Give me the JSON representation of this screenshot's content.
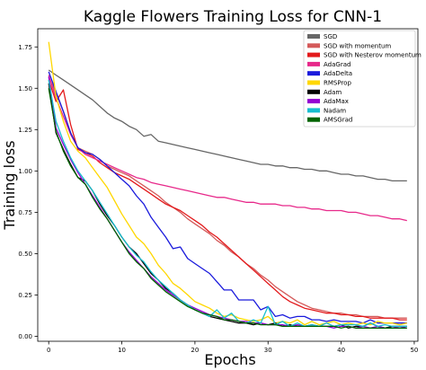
{
  "chart_data": {
    "type": "line",
    "title": "Kaggle Flowers Training Loss for CNN-1",
    "xlabel": "Epochs",
    "ylabel": "Training loss",
    "xlim": [
      -1.5,
      50.5
    ],
    "ylim": [
      -0.03,
      1.86
    ],
    "xticks": [
      0,
      10,
      20,
      30,
      40,
      50
    ],
    "yticks": [
      0.0,
      0.25,
      0.5,
      0.75,
      1.0,
      1.25,
      1.5,
      1.75
    ],
    "xtick_labels": [
      "0",
      "10",
      "20",
      "30",
      "40",
      "50"
    ],
    "ytick_labels": [
      "0.00",
      "0.25",
      "0.50",
      "0.75",
      "1.00",
      "1.25",
      "1.50",
      "1.75"
    ],
    "grid": false,
    "legend_position": "top-right",
    "x": [
      0,
      1,
      2,
      3,
      4,
      5,
      6,
      7,
      8,
      9,
      10,
      11,
      12,
      13,
      14,
      15,
      16,
      17,
      18,
      19,
      20,
      21,
      22,
      23,
      24,
      25,
      26,
      27,
      28,
      29,
      30,
      31,
      32,
      33,
      34,
      35,
      36,
      37,
      38,
      39,
      40,
      41,
      42,
      43,
      44,
      45,
      46,
      47,
      48,
      49
    ],
    "series": [
      {
        "name": "SGD",
        "color": "#666666",
        "values": [
          1.61,
          1.58,
          1.55,
          1.52,
          1.49,
          1.46,
          1.43,
          1.39,
          1.35,
          1.32,
          1.3,
          1.27,
          1.25,
          1.21,
          1.22,
          1.18,
          1.17,
          1.16,
          1.15,
          1.14,
          1.13,
          1.12,
          1.11,
          1.1,
          1.09,
          1.08,
          1.07,
          1.06,
          1.05,
          1.04,
          1.04,
          1.03,
          1.03,
          1.02,
          1.02,
          1.01,
          1.01,
          1.0,
          1.0,
          0.99,
          0.98,
          0.98,
          0.97,
          0.97,
          0.96,
          0.95,
          0.95,
          0.94,
          0.94,
          0.94
        ]
      },
      {
        "name": "SGD with momentum",
        "color": "#d45a5a",
        "values": [
          1.57,
          1.47,
          1.36,
          1.23,
          1.14,
          1.12,
          1.1,
          1.07,
          1.03,
          1.01,
          0.99,
          0.97,
          0.94,
          0.91,
          0.88,
          0.85,
          0.81,
          0.78,
          0.75,
          0.71,
          0.68,
          0.65,
          0.62,
          0.58,
          0.55,
          0.51,
          0.48,
          0.44,
          0.41,
          0.37,
          0.34,
          0.3,
          0.27,
          0.24,
          0.21,
          0.19,
          0.17,
          0.16,
          0.15,
          0.14,
          0.14,
          0.13,
          0.13,
          0.12,
          0.12,
          0.12,
          0.11,
          0.11,
          0.11,
          0.11
        ]
      },
      {
        "name": "SGD with Nesterov momentum",
        "color": "#e31a1c",
        "values": [
          1.55,
          1.42,
          1.49,
          1.28,
          1.13,
          1.11,
          1.09,
          1.05,
          1.02,
          0.99,
          0.97,
          0.95,
          0.92,
          0.89,
          0.86,
          0.83,
          0.8,
          0.78,
          0.76,
          0.73,
          0.7,
          0.67,
          0.63,
          0.6,
          0.56,
          0.52,
          0.48,
          0.44,
          0.4,
          0.36,
          0.32,
          0.28,
          0.24,
          0.21,
          0.19,
          0.17,
          0.16,
          0.15,
          0.14,
          0.14,
          0.13,
          0.13,
          0.12,
          0.12,
          0.11,
          0.11,
          0.11,
          0.11,
          0.1,
          0.1
        ]
      },
      {
        "name": "AdaGrad",
        "color": "#e7298a",
        "values": [
          1.58,
          1.44,
          1.33,
          1.22,
          1.14,
          1.1,
          1.08,
          1.06,
          1.04,
          1.02,
          1.0,
          0.98,
          0.96,
          0.95,
          0.93,
          0.92,
          0.91,
          0.9,
          0.89,
          0.88,
          0.87,
          0.86,
          0.85,
          0.84,
          0.84,
          0.83,
          0.82,
          0.81,
          0.81,
          0.8,
          0.8,
          0.8,
          0.79,
          0.79,
          0.78,
          0.78,
          0.77,
          0.77,
          0.76,
          0.76,
          0.76,
          0.75,
          0.75,
          0.74,
          0.73,
          0.73,
          0.72,
          0.71,
          0.71,
          0.7
        ]
      },
      {
        "name": "AdaDelta",
        "color": "#1a1adc",
        "values": [
          1.6,
          1.48,
          1.36,
          1.23,
          1.14,
          1.11,
          1.1,
          1.07,
          1.03,
          0.99,
          0.95,
          0.91,
          0.85,
          0.8,
          0.72,
          0.66,
          0.6,
          0.53,
          0.54,
          0.47,
          0.44,
          0.41,
          0.38,
          0.33,
          0.28,
          0.28,
          0.22,
          0.22,
          0.22,
          0.16,
          0.18,
          0.12,
          0.13,
          0.11,
          0.12,
          0.12,
          0.1,
          0.1,
          0.09,
          0.1,
          0.09,
          0.09,
          0.09,
          0.08,
          0.1,
          0.08,
          0.08,
          0.08,
          0.08,
          0.08
        ]
      },
      {
        "name": "RMSProp",
        "color": "#ffd700",
        "values": [
          1.78,
          1.45,
          1.3,
          1.18,
          1.12,
          1.08,
          1.02,
          0.96,
          0.9,
          0.82,
          0.74,
          0.67,
          0.6,
          0.56,
          0.5,
          0.43,
          0.38,
          0.32,
          0.29,
          0.25,
          0.21,
          0.19,
          0.17,
          0.14,
          0.12,
          0.13,
          0.11,
          0.1,
          0.09,
          0.1,
          0.12,
          0.08,
          0.09,
          0.08,
          0.1,
          0.07,
          0.09,
          0.07,
          0.08,
          0.09,
          0.07,
          0.08,
          0.07,
          0.08,
          0.07,
          0.09,
          0.08,
          0.08,
          0.07,
          0.08
        ]
      },
      {
        "name": "Adam",
        "color": "#000000",
        "values": [
          1.53,
          1.23,
          1.13,
          1.04,
          0.96,
          0.94,
          0.88,
          0.8,
          0.73,
          0.67,
          0.6,
          0.54,
          0.5,
          0.44,
          0.38,
          0.34,
          0.29,
          0.26,
          0.22,
          0.19,
          0.16,
          0.14,
          0.12,
          0.11,
          0.1,
          0.09,
          0.08,
          0.08,
          0.07,
          0.08,
          0.07,
          0.08,
          0.06,
          0.07,
          0.06,
          0.06,
          0.07,
          0.06,
          0.06,
          0.06,
          0.07,
          0.05,
          0.06,
          0.06,
          0.08,
          0.06,
          0.05,
          0.06,
          0.06,
          0.06
        ]
      },
      {
        "name": "AdaMax",
        "color": "#9400d3",
        "values": [
          1.57,
          1.26,
          1.16,
          1.07,
          0.99,
          0.92,
          0.85,
          0.78,
          0.71,
          0.64,
          0.57,
          0.51,
          0.46,
          0.41,
          0.36,
          0.32,
          0.28,
          0.25,
          0.22,
          0.19,
          0.17,
          0.15,
          0.13,
          0.12,
          0.11,
          0.1,
          0.09,
          0.09,
          0.08,
          0.08,
          0.07,
          0.07,
          0.07,
          0.06,
          0.07,
          0.06,
          0.06,
          0.06,
          0.06,
          0.05,
          0.06,
          0.06,
          0.05,
          0.06,
          0.05,
          0.06,
          0.05,
          0.05,
          0.06,
          0.05
        ]
      },
      {
        "name": "Nadam",
        "color": "#17becf",
        "values": [
          1.55,
          1.3,
          1.18,
          1.08,
          1.0,
          0.94,
          0.88,
          0.81,
          0.74,
          0.67,
          0.6,
          0.54,
          0.49,
          0.45,
          0.39,
          0.34,
          0.3,
          0.26,
          0.22,
          0.19,
          0.16,
          0.14,
          0.12,
          0.16,
          0.11,
          0.14,
          0.09,
          0.08,
          0.1,
          0.08,
          0.18,
          0.07,
          0.09,
          0.06,
          0.08,
          0.06,
          0.07,
          0.06,
          0.08,
          0.06,
          0.07,
          0.07,
          0.07,
          0.06,
          0.08,
          0.06,
          0.07,
          0.06,
          0.06,
          0.06
        ]
      },
      {
        "name": "AMSGrad",
        "color": "#006400",
        "values": [
          1.5,
          1.24,
          1.12,
          1.03,
          0.96,
          0.92,
          0.84,
          0.77,
          0.71,
          0.64,
          0.57,
          0.5,
          0.45,
          0.41,
          0.35,
          0.31,
          0.27,
          0.24,
          0.21,
          0.18,
          0.16,
          0.14,
          0.13,
          0.12,
          0.1,
          0.1,
          0.09,
          0.08,
          0.08,
          0.07,
          0.07,
          0.07,
          0.06,
          0.06,
          0.06,
          0.06,
          0.06,
          0.06,
          0.06,
          0.06,
          0.05,
          0.06,
          0.05,
          0.05,
          0.05,
          0.05,
          0.05,
          0.05,
          0.05,
          0.05
        ]
      }
    ]
  }
}
